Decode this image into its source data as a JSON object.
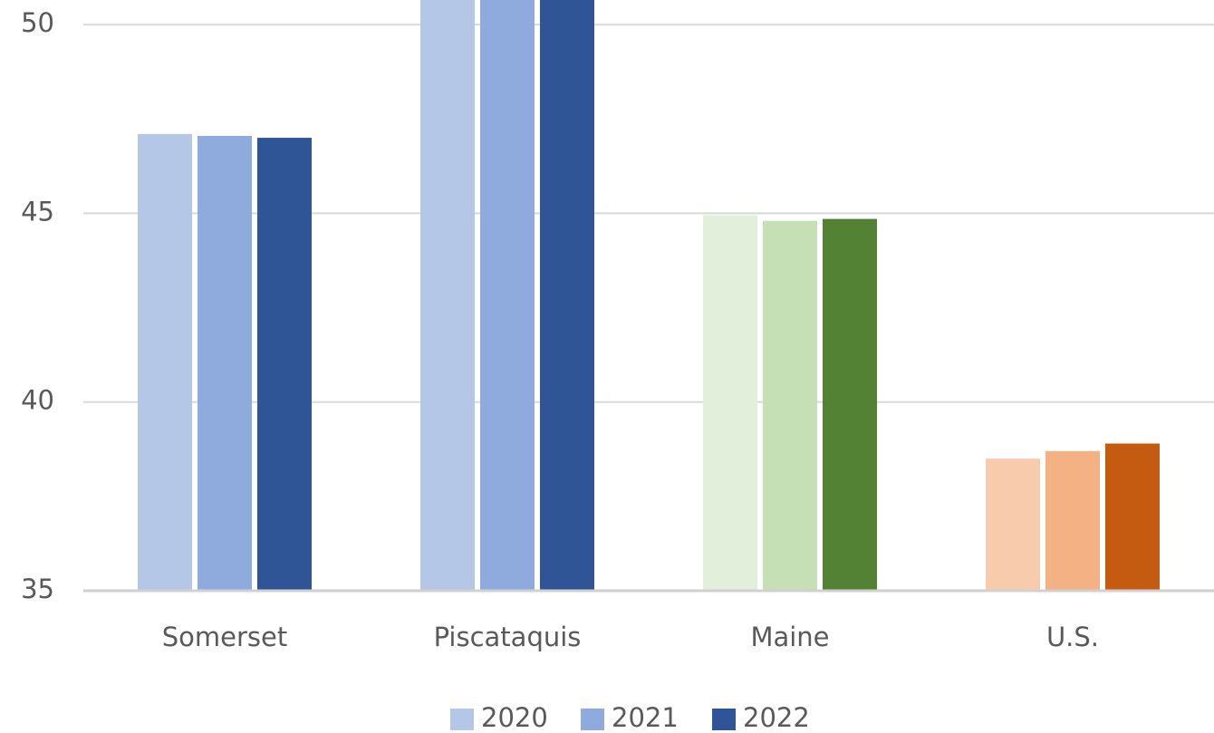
{
  "chart_data": {
    "type": "bar",
    "categories": [
      "Somerset",
      "Piscataquis",
      "Maine",
      "U.S."
    ],
    "series": [
      {
        "name": "2020",
        "color": "#b4c7e7",
        "point_colors": [
          "#b4c7e7",
          "#b4c7e7",
          "#e2efda",
          "#f8cbad"
        ],
        "values": [
          47.1,
          51.5,
          44.95,
          38.5
        ]
      },
      {
        "name": "2021",
        "color": "#8faadc",
        "point_colors": [
          "#8faadc",
          "#8faadc",
          "#c5e0b4",
          "#f4b183"
        ],
        "values": [
          47.05,
          51.6,
          44.8,
          38.7
        ]
      },
      {
        "name": "2022",
        "color": "#2f5597",
        "point_colors": [
          "#2f5597",
          "#2f5597",
          "#548235",
          "#c55a11"
        ],
        "values": [
          47.0,
          51.7,
          44.85,
          38.9
        ]
      }
    ],
    "ylim": [
      35,
      50.65
    ],
    "yticks": [
      35,
      40,
      45,
      50
    ],
    "grid": true,
    "legend": "bottom"
  }
}
